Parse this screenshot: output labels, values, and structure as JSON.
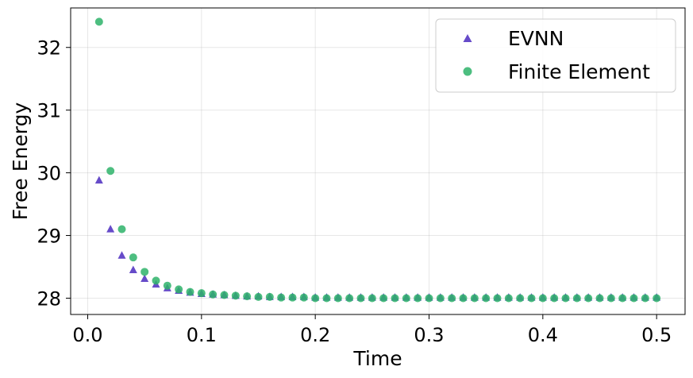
{
  "chart_data": {
    "type": "scatter",
    "xlabel": "Time",
    "ylabel": "Free Energy",
    "xlim": [
      -0.015,
      0.525
    ],
    "ylim": [
      27.74,
      32.63
    ],
    "x_ticks": [
      0.0,
      0.1,
      0.2,
      0.3,
      0.4,
      0.5
    ],
    "x_tick_labels": [
      "0.0",
      "0.1",
      "0.2",
      "0.3",
      "0.4",
      "0.5"
    ],
    "y_ticks": [
      28,
      29,
      30,
      31,
      32
    ],
    "y_tick_labels": [
      "28",
      "29",
      "30",
      "31",
      "32"
    ],
    "grid": true,
    "legend_position": "top-right",
    "series": [
      {
        "name": "EVNN",
        "marker": "triangle",
        "color": "#4b2bbf",
        "x": [
          0.01,
          0.02,
          0.03,
          0.04,
          0.05,
          0.06,
          0.07,
          0.08,
          0.09,
          0.1,
          0.11,
          0.12,
          0.13,
          0.14,
          0.15,
          0.16,
          0.17,
          0.18,
          0.19,
          0.2,
          0.21,
          0.22,
          0.23,
          0.24,
          0.25,
          0.26,
          0.27,
          0.28,
          0.29,
          0.3,
          0.31,
          0.32,
          0.33,
          0.34,
          0.35,
          0.36,
          0.37,
          0.38,
          0.39,
          0.4,
          0.41,
          0.42,
          0.43,
          0.44,
          0.45,
          0.46,
          0.47,
          0.48,
          0.49,
          0.5
        ],
        "y": [
          29.88,
          29.1,
          28.68,
          28.45,
          28.31,
          28.22,
          28.16,
          28.12,
          28.09,
          28.07,
          28.06,
          28.05,
          28.04,
          28.03,
          28.03,
          28.02,
          28.02,
          28.02,
          28.02,
          28.01,
          28.01,
          28.01,
          28.01,
          28.01,
          28.01,
          28.01,
          28.01,
          28.01,
          28.01,
          28.01,
          28.01,
          28.01,
          28.01,
          28.01,
          28.01,
          28.01,
          28.01,
          28.01,
          28.01,
          28.01,
          28.01,
          28.01,
          28.01,
          28.01,
          28.01,
          28.01,
          28.01,
          28.01,
          28.01,
          28.01
        ]
      },
      {
        "name": "Finite Element",
        "marker": "circle",
        "color": "#2eb36a",
        "x": [
          0.01,
          0.02,
          0.03,
          0.04,
          0.05,
          0.06,
          0.07,
          0.08,
          0.09,
          0.1,
          0.11,
          0.12,
          0.13,
          0.14,
          0.15,
          0.16,
          0.17,
          0.18,
          0.19,
          0.2,
          0.21,
          0.22,
          0.23,
          0.24,
          0.25,
          0.26,
          0.27,
          0.28,
          0.29,
          0.3,
          0.31,
          0.32,
          0.33,
          0.34,
          0.35,
          0.36,
          0.37,
          0.38,
          0.39,
          0.4,
          0.41,
          0.42,
          0.43,
          0.44,
          0.45,
          0.46,
          0.47,
          0.48,
          0.49,
          0.5
        ],
        "y": [
          32.41,
          30.03,
          29.1,
          28.65,
          28.42,
          28.28,
          28.2,
          28.14,
          28.1,
          28.08,
          28.06,
          28.05,
          28.04,
          28.03,
          28.02,
          28.02,
          28.01,
          28.01,
          28.01,
          28.0,
          28.0,
          28.0,
          28.0,
          28.0,
          28.0,
          28.0,
          28.0,
          28.0,
          28.0,
          28.0,
          28.0,
          28.0,
          28.0,
          28.0,
          28.0,
          28.0,
          28.0,
          28.0,
          28.0,
          28.0,
          28.0,
          28.0,
          28.0,
          28.0,
          28.0,
          28.0,
          28.0,
          28.0,
          28.0,
          28.0
        ]
      }
    ]
  }
}
